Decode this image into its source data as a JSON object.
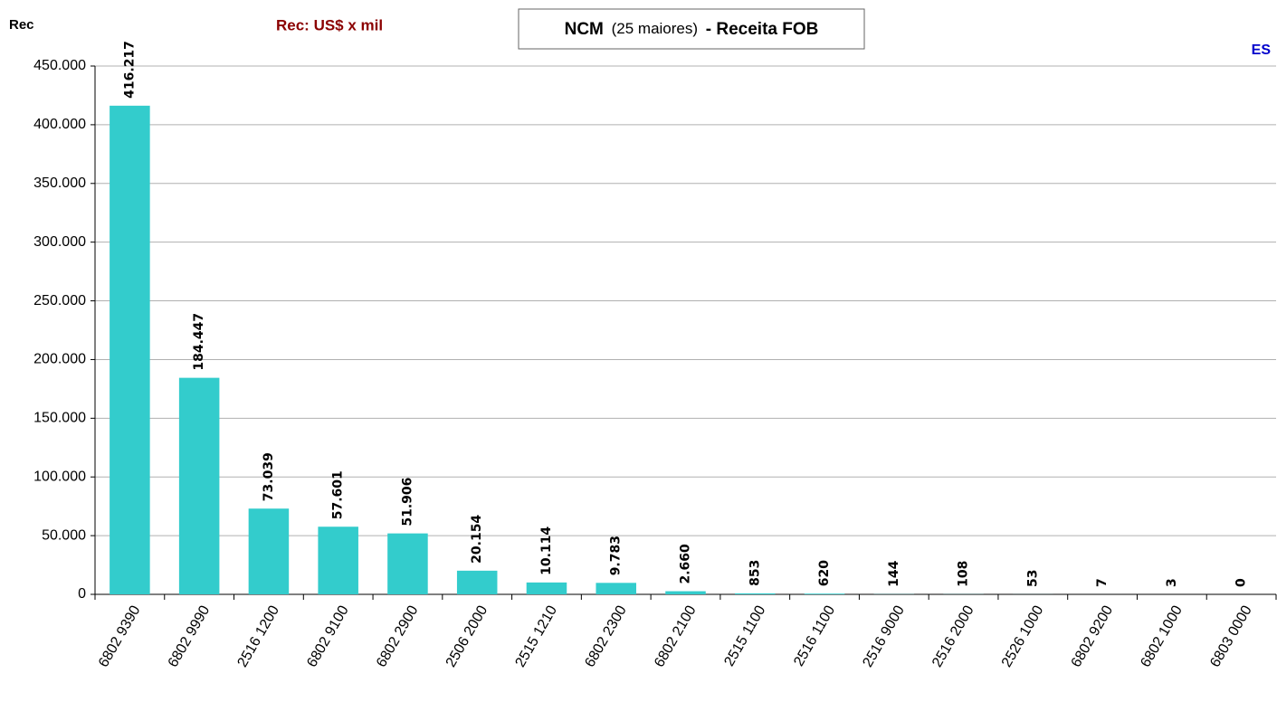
{
  "chart_data": {
    "type": "bar",
    "title": "NCM",
    "title_note": "(25 maiores)",
    "title_suffix": "- Receita FOB",
    "subtitle": "Rec: US$ x mil",
    "y_label": "Rec",
    "annotation": "ES",
    "categories": [
      "6802 9390",
      "6802 9990",
      "2516 1200",
      "6802 9100",
      "6802 2900",
      "2506 2000",
      "2515 1210",
      "6802 2300",
      "6802 2100",
      "2515 1100",
      "2516 1100",
      "2516 9000",
      "2516 2000",
      "2526 1000",
      "6802 9200",
      "6802 1000",
      "6803 0000"
    ],
    "values": [
      416217,
      184447,
      73039,
      57601,
      51906,
      20154,
      10114,
      9783,
      2660,
      853,
      620,
      144,
      108,
      53,
      7,
      3,
      0
    ],
    "value_labels": [
      "416.217",
      "184.447",
      "73.039",
      "57.601",
      "51.906",
      "20.154",
      "10.114",
      "9.783",
      "2.660",
      "853",
      "620",
      "144",
      "108",
      "53",
      "7",
      "3",
      "0"
    ],
    "color": "#33cccc",
    "ylim": [
      0,
      450000
    ],
    "yticks": [
      0,
      {
        "value": 50000,
        "label": "50.000"
      },
      {
        "value": 100000,
        "label": "100.000"
      },
      {
        "value": 150000,
        "label": "150.000"
      },
      {
        "value": 200000,
        "label": "200.000"
      },
      {
        "value": 250000,
        "label": "250.000"
      },
      {
        "value": 300000,
        "label": "300.000"
      },
      {
        "value": 350000,
        "label": "350.000"
      },
      {
        "value": 400000,
        "label": "400.000"
      },
      {
        "value": 450000,
        "label": "450.000"
      }
    ],
    "grid": true
  }
}
